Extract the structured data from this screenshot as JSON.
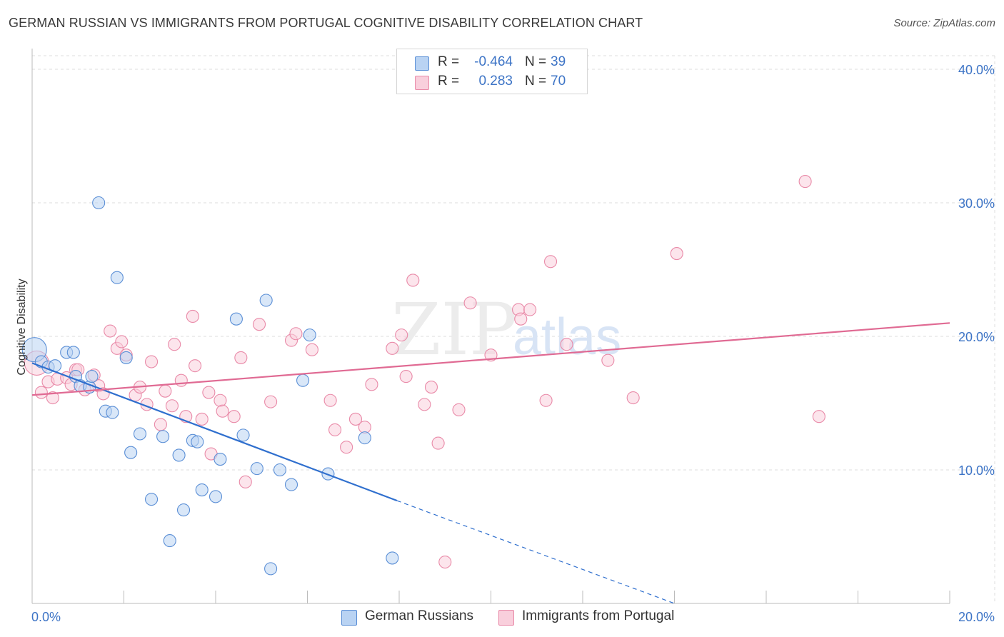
{
  "title": "GERMAN RUSSIAN VS IMMIGRANTS FROM PORTUGAL COGNITIVE DISABILITY CORRELATION CHART",
  "source": "Source: ZipAtlas.com",
  "watermark": {
    "zip": "ZIP",
    "atlas": "atlas"
  },
  "legend": {
    "rows": [
      {
        "r_label": "R =",
        "r_value": "-0.464",
        "n_label": "N =",
        "n_value": "39"
      },
      {
        "r_label": "R =",
        "r_value": "0.283",
        "n_label": "N =",
        "n_value": "70"
      }
    ]
  },
  "bottom_legend": {
    "series1": "German Russians",
    "series2": "Immigrants from Portugal"
  },
  "colors": {
    "blue_fill": "#b9d3f3",
    "blue_stroke": "#5b8fd6",
    "blue_line": "#2f6fce",
    "pink_fill": "#f9cfdc",
    "pink_stroke": "#e98aa8",
    "pink_line": "#e06a93",
    "tick_text": "#3d74c6",
    "grid": "#dcdcdc"
  },
  "chart_data": {
    "type": "scatter",
    "title": "GERMAN RUSSIAN VS IMMIGRANTS FROM PORTUGAL COGNITIVE DISABILITY CORRELATION CHART",
    "xlabel": "",
    "ylabel": "Cognitive Disability",
    "xlim": [
      0,
      20
    ],
    "ylim": [
      0,
      40
    ],
    "x_tick_labels": [
      "0.0%",
      "20.0%"
    ],
    "y_ticks": [
      10,
      20,
      30,
      40
    ],
    "y_tick_labels": [
      "10.0%",
      "20.0%",
      "30.0%",
      "40.0%"
    ],
    "grid": true,
    "series": [
      {
        "name": "German Russians",
        "r": -0.464,
        "n": 39,
        "points": [
          [
            0.05,
            19.0
          ],
          [
            0.2,
            18.1
          ],
          [
            0.35,
            17.7
          ],
          [
            0.5,
            17.8
          ],
          [
            0.75,
            18.8
          ],
          [
            0.9,
            18.8
          ],
          [
            0.95,
            17.0
          ],
          [
            1.05,
            16.3
          ],
          [
            1.25,
            16.2
          ],
          [
            1.3,
            17.0
          ],
          [
            1.45,
            30.0
          ],
          [
            1.6,
            14.4
          ],
          [
            1.75,
            14.3
          ],
          [
            1.85,
            24.4
          ],
          [
            2.05,
            18.4
          ],
          [
            2.15,
            11.3
          ],
          [
            2.35,
            12.7
          ],
          [
            2.6,
            7.8
          ],
          [
            2.85,
            12.5
          ],
          [
            3.0,
            4.7
          ],
          [
            3.2,
            11.1
          ],
          [
            3.3,
            7.0
          ],
          [
            3.5,
            12.2
          ],
          [
            3.6,
            12.1
          ],
          [
            3.7,
            8.5
          ],
          [
            4.0,
            8.0
          ],
          [
            4.1,
            10.8
          ],
          [
            4.45,
            21.3
          ],
          [
            4.6,
            12.6
          ],
          [
            4.9,
            10.1
          ],
          [
            5.1,
            22.7
          ],
          [
            5.2,
            2.6
          ],
          [
            5.4,
            10.0
          ],
          [
            5.65,
            8.9
          ],
          [
            5.9,
            16.7
          ],
          [
            6.05,
            20.1
          ],
          [
            6.45,
            9.7
          ],
          [
            7.25,
            12.4
          ],
          [
            7.85,
            3.4
          ]
        ]
      },
      {
        "name": "Immigrants from Portugal",
        "r": 0.283,
        "n": 70,
        "points": [
          [
            0.1,
            18.0
          ],
          [
            0.2,
            15.8
          ],
          [
            0.35,
            16.6
          ],
          [
            0.45,
            15.4
          ],
          [
            0.55,
            16.8
          ],
          [
            0.75,
            16.9
          ],
          [
            0.85,
            16.4
          ],
          [
            0.95,
            17.5
          ],
          [
            1.0,
            17.5
          ],
          [
            1.15,
            16.0
          ],
          [
            1.35,
            17.1
          ],
          [
            1.45,
            16.3
          ],
          [
            1.55,
            15.7
          ],
          [
            1.7,
            20.4
          ],
          [
            1.85,
            19.1
          ],
          [
            1.95,
            19.6
          ],
          [
            2.05,
            18.6
          ],
          [
            2.25,
            15.6
          ],
          [
            2.35,
            16.2
          ],
          [
            2.5,
            14.9
          ],
          [
            2.6,
            18.1
          ],
          [
            2.8,
            13.4
          ],
          [
            2.9,
            15.9
          ],
          [
            3.05,
            14.8
          ],
          [
            3.1,
            19.4
          ],
          [
            3.25,
            16.7
          ],
          [
            3.35,
            14.0
          ],
          [
            3.5,
            21.5
          ],
          [
            3.55,
            17.8
          ],
          [
            3.7,
            13.8
          ],
          [
            3.85,
            15.8
          ],
          [
            3.9,
            11.2
          ],
          [
            4.1,
            15.2
          ],
          [
            4.15,
            14.4
          ],
          [
            4.4,
            14.0
          ],
          [
            4.55,
            18.4
          ],
          [
            4.65,
            9.1
          ],
          [
            4.95,
            20.9
          ],
          [
            5.2,
            15.1
          ],
          [
            5.65,
            19.7
          ],
          [
            5.75,
            20.2
          ],
          [
            6.1,
            19.0
          ],
          [
            6.5,
            15.2
          ],
          [
            6.6,
            13.0
          ],
          [
            6.85,
            11.7
          ],
          [
            7.05,
            13.8
          ],
          [
            7.25,
            13.2
          ],
          [
            7.4,
            16.4
          ],
          [
            7.85,
            19.1
          ],
          [
            8.05,
            20.1
          ],
          [
            8.15,
            17.0
          ],
          [
            8.3,
            24.2
          ],
          [
            8.55,
            14.9
          ],
          [
            8.7,
            16.2
          ],
          [
            8.85,
            12.0
          ],
          [
            9.0,
            3.1
          ],
          [
            9.3,
            14.5
          ],
          [
            9.55,
            22.5
          ],
          [
            10.0,
            18.6
          ],
          [
            10.6,
            22.0
          ],
          [
            10.65,
            21.3
          ],
          [
            10.85,
            22.0
          ],
          [
            11.2,
            15.2
          ],
          [
            11.3,
            25.6
          ],
          [
            11.65,
            19.4
          ],
          [
            12.55,
            18.2
          ],
          [
            13.1,
            15.4
          ],
          [
            14.05,
            26.2
          ],
          [
            16.85,
            31.6
          ],
          [
            17.15,
            14.0
          ]
        ]
      }
    ],
    "trend_lines": [
      {
        "series": "German Russians",
        "x": [
          0.0,
          7.95
        ],
        "y": [
          18.0,
          7.7
        ],
        "dashed_extension_to": [
          14.0,
          0.0
        ]
      },
      {
        "series": "Immigrants from Portugal",
        "x": [
          0.0,
          20.0
        ],
        "y": [
          15.6,
          21.0
        ]
      }
    ]
  }
}
